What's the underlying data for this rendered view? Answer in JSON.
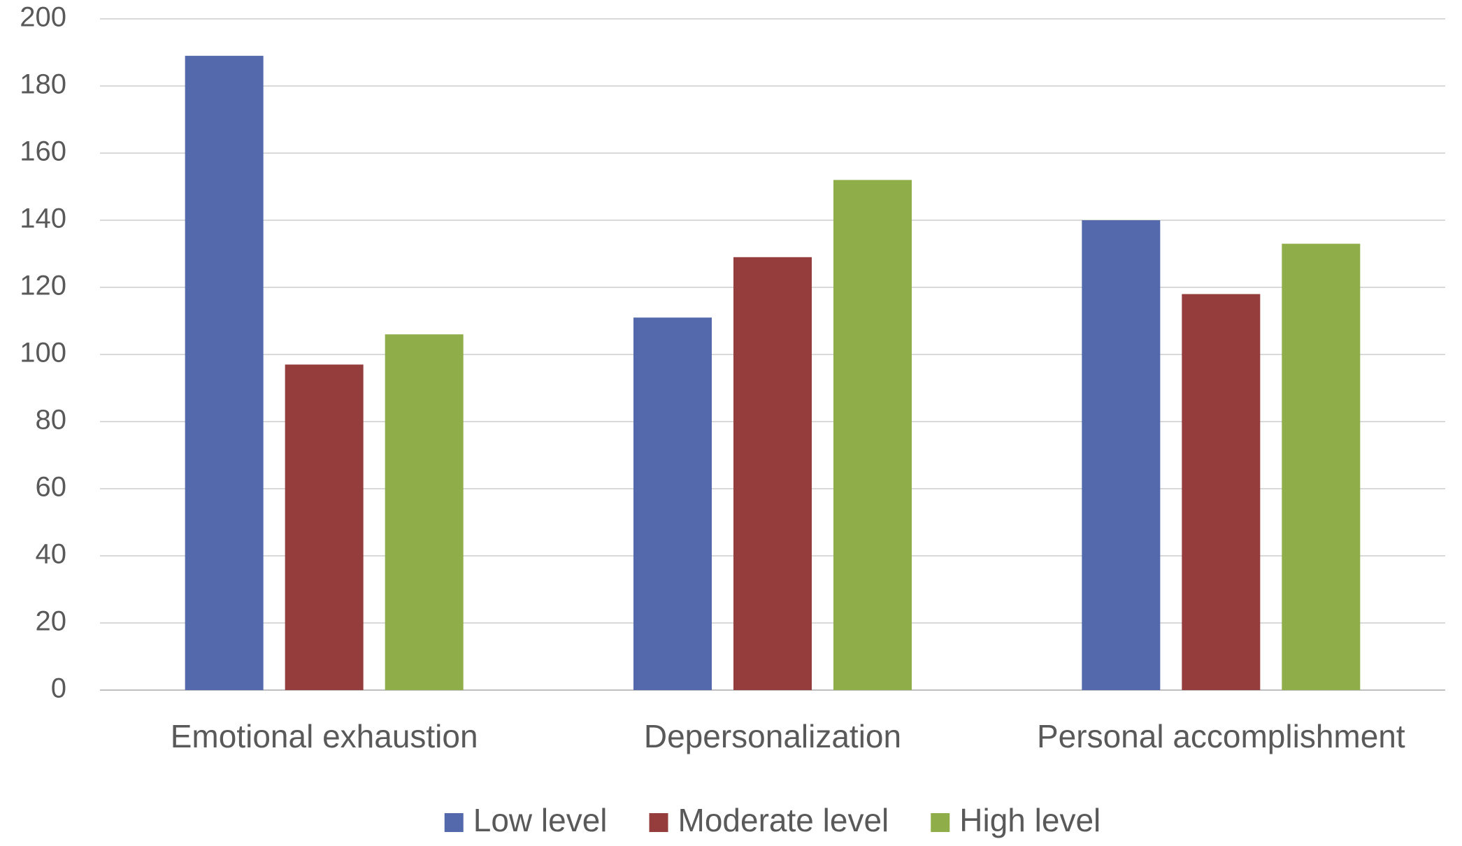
{
  "chart_data": {
    "type": "bar",
    "categories": [
      "Emotional exhaustion",
      "Depersonalization",
      "Personal accomplishment"
    ],
    "series": [
      {
        "name": "Low level",
        "color": "#5469ab",
        "values": [
          189,
          111,
          140
        ]
      },
      {
        "name": "Moderate level",
        "color": "#953d3d",
        "values": [
          97,
          129,
          118
        ]
      },
      {
        "name": "High level",
        "color": "#8fae4a",
        "values": [
          106,
          152,
          133
        ]
      }
    ],
    "ylim": [
      0,
      200
    ],
    "yticks": [
      0,
      20,
      40,
      60,
      80,
      100,
      120,
      140,
      160,
      180,
      200
    ],
    "grid": true,
    "legend": "bottom"
  }
}
